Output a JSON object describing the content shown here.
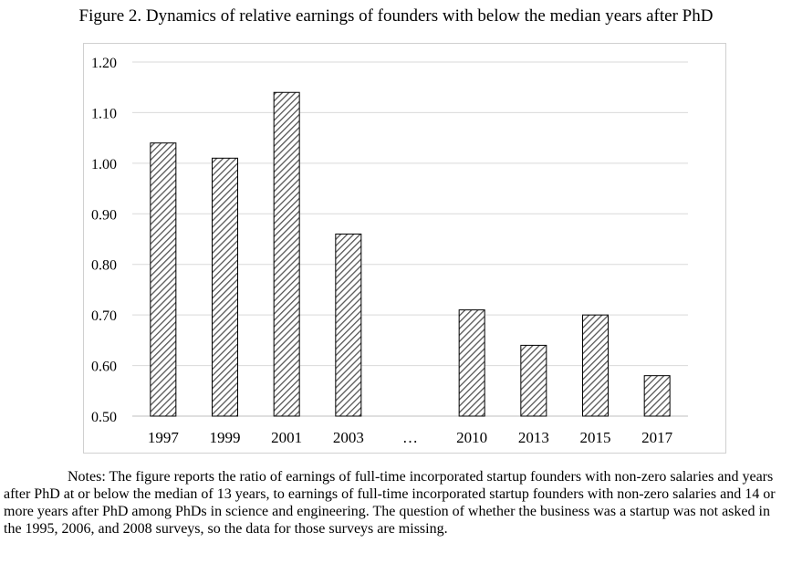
{
  "figure_title": "Figure 2. Dynamics of relative earnings of founders with below the median years after PhD",
  "notes": "Notes: The figure reports the ratio of earnings of full-time incorporated startup founders with non-zero salaries and years after PhD at or below the median of 13 years, to earnings of full-time incorporated startup founders with non-zero salaries and 14 or more years after PhD among PhDs in science and engineering. The question of whether the business was a startup was not asked in the 1995, 2006, and 2008 surveys, so the data for those surveys are missing.",
  "chart_data": {
    "type": "bar",
    "categories": [
      "1997",
      "1999",
      "2001",
      "2003",
      "…",
      "2010",
      "2013",
      "2015",
      "2017"
    ],
    "values": [
      1.04,
      1.01,
      1.14,
      0.86,
      null,
      0.71,
      0.64,
      0.7,
      0.58
    ],
    "ylim": [
      0.5,
      1.2
    ],
    "yticks": [
      "0.50",
      "0.60",
      "0.70",
      "0.80",
      "0.90",
      "1.00",
      "1.10",
      "1.20"
    ],
    "title": "",
    "xlabel": "",
    "ylabel": "",
    "grid": true,
    "legend": "none",
    "bar_fill": "diagonal-hatch",
    "colors": {
      "bar_stroke": "#000000",
      "hatch": "#555555",
      "grid": "#d9d9d9",
      "axis": "#bfbfbf",
      "frame": "#d0d0d0"
    }
  }
}
